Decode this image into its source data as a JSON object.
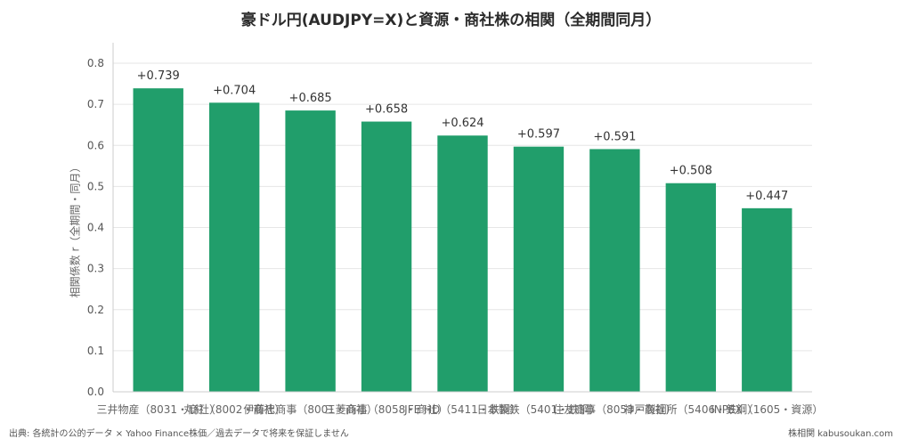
{
  "chart_data": {
    "type": "bar",
    "title": "豪ドル円(AUDJPY=X)と資源・商社株の相関（全期間同月）",
    "xlabel": "",
    "ylabel": "相関係数 r（全期間・同月）",
    "ylim": [
      0,
      0.85
    ],
    "yticks": [
      "0.0",
      "0.1",
      "0.2",
      "0.3",
      "0.4",
      "0.5",
      "0.6",
      "0.7",
      "0.8"
    ],
    "grid": true,
    "categories": [
      "三井物産（8031・商社）",
      "丸紅（8002・商社）",
      "伊藤忠商事（8001・商社）",
      "三菱商事（8058・商社）",
      "JFE HD（5411・鉄鋼）",
      "日本製鉄（5401・鉄鋼）",
      "住友商事（8053・商社）",
      "神戸製鋼所（5406・鉄鋼）",
      "INPEX（1605・資源）"
    ],
    "values": [
      0.739,
      0.704,
      0.685,
      0.658,
      0.624,
      0.597,
      0.591,
      0.508,
      0.447
    ],
    "value_labels": [
      "+0.739",
      "+0.704",
      "+0.685",
      "+0.658",
      "+0.624",
      "+0.597",
      "+0.591",
      "+0.508",
      "+0.447"
    ],
    "bar_color": "#219e6b"
  },
  "footer": {
    "source": "出典: 各統計の公的データ × Yahoo Finance株価／過去データで将来を保証しません",
    "brand": "株相関 kabusoukan.com"
  }
}
